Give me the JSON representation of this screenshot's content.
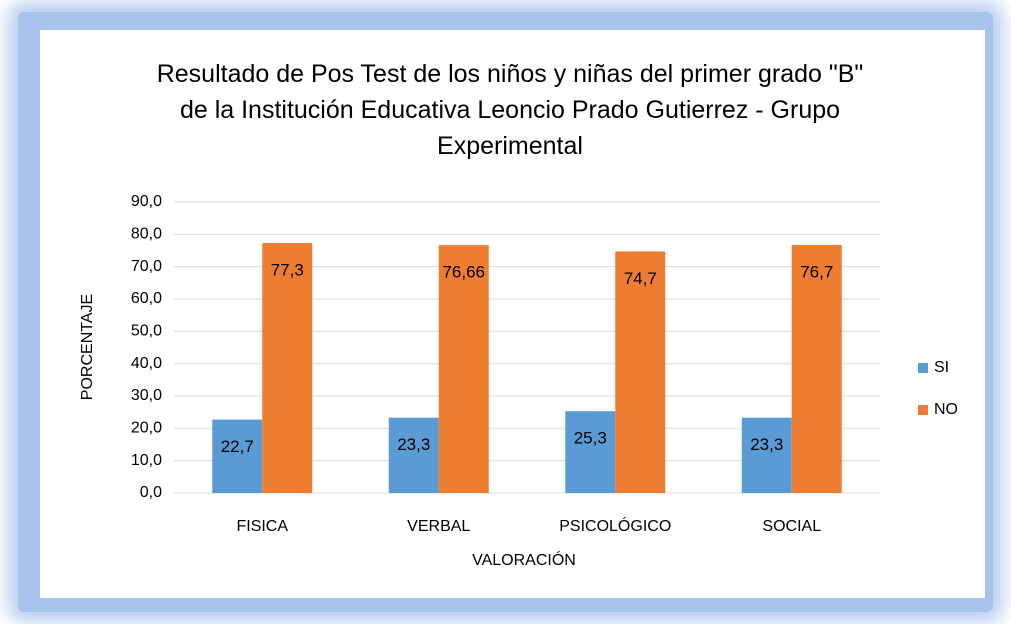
{
  "chart_data": {
    "type": "bar",
    "title": "Resultado de Pos Test de los niños y niñas del primer grado \"B\" de la Institución Educativa Leoncio Prado Gutierrez - Grupo Experimental",
    "x_label": "VALORACIÓN",
    "y_label": "PORCENTAJE",
    "categories": [
      "FISICA",
      "VERBAL",
      "PSICOLÓGICO",
      "SOCIAL"
    ],
    "series": [
      {
        "name": "SI",
        "color": "#5b9bd5",
        "values": [
          22.7,
          23.3,
          25.3,
          23.3
        ],
        "value_labels": [
          "22,7",
          "23,3",
          "25,3",
          "23,3"
        ]
      },
      {
        "name": "NO",
        "color": "#ed7d31",
        "values": [
          77.3,
          76.66,
          74.7,
          76.7
        ],
        "value_labels": [
          "77,3",
          "76,66",
          "74,7",
          "76,7"
        ]
      }
    ],
    "ylim": [
      0,
      90
    ],
    "yticks": [
      {
        "value": 0,
        "label": "0,0"
      },
      {
        "value": 10,
        "label": "10,0"
      },
      {
        "value": 20,
        "label": "20,0"
      },
      {
        "value": 30,
        "label": "30,0"
      },
      {
        "value": 40,
        "label": "40,0"
      },
      {
        "value": 50,
        "label": "50,0"
      },
      {
        "value": 60,
        "label": "60,0"
      },
      {
        "value": 70,
        "label": "70,0"
      },
      {
        "value": 80,
        "label": "80,0"
      },
      {
        "value": 90,
        "label": "90,0"
      }
    ],
    "grid": true,
    "legend": "right"
  }
}
